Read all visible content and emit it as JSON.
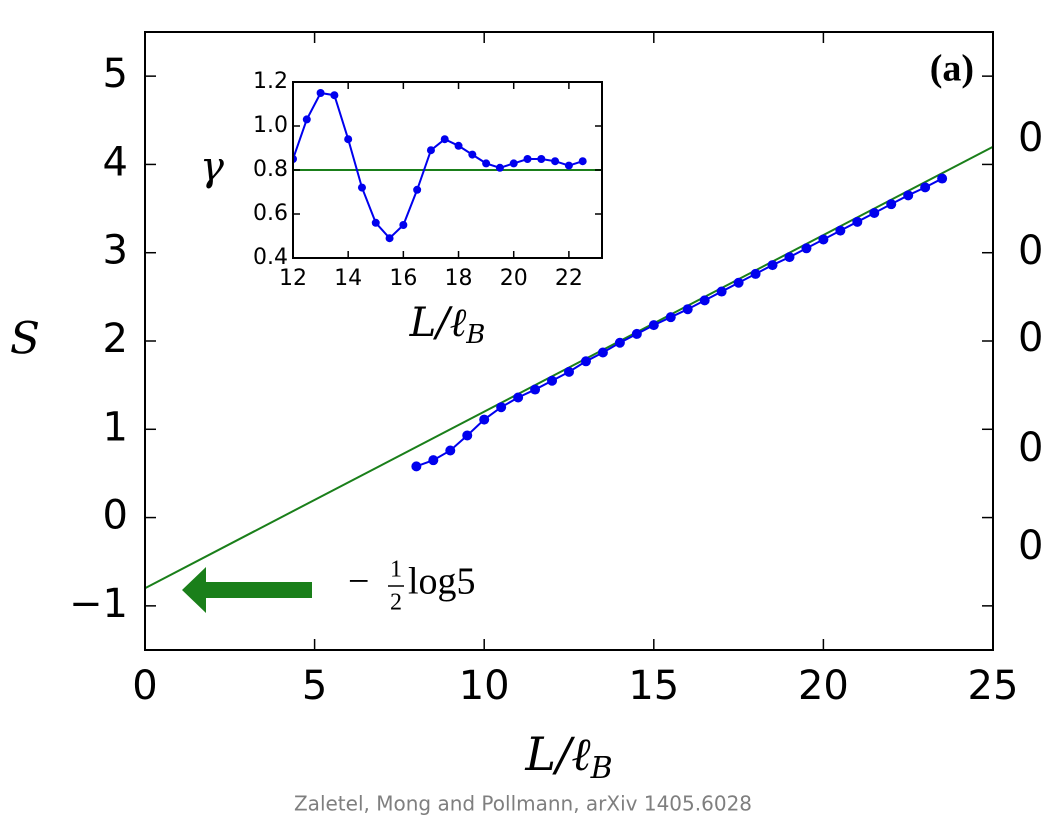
{
  "chart_data": [
    {
      "type": "line",
      "panel_label": "(a)",
      "y_label": "S",
      "x_label": {
        "main": "L/ℓ",
        "sub": "B"
      },
      "xlim": [
        0,
        25
      ],
      "xticks": [
        0,
        5,
        10,
        15,
        20,
        25
      ],
      "ylim": [
        -1.5,
        5.5
      ],
      "yticks": [
        {
          "value": -1,
          "label": "−1"
        },
        0,
        1,
        2,
        3,
        4,
        5
      ],
      "y2_labels": [
        "0",
        "0",
        "0",
        "0",
        "0"
      ],
      "x": [
        8,
        8.5,
        9,
        9.5,
        10,
        10.5,
        11,
        11.5,
        12,
        12.5,
        13,
        13.5,
        14,
        14.5,
        15,
        15.5,
        16,
        16.5,
        17,
        17.5,
        18,
        18.5,
        19,
        19.5,
        20,
        20.5,
        21,
        21.5,
        22,
        22.5,
        23,
        23.5
      ],
      "series": [
        {
          "color": "#0000ee",
          "values": [
            0.58,
            0.65,
            0.76,
            0.93,
            1.11,
            1.25,
            1.36,
            1.45,
            1.55,
            1.65,
            1.77,
            1.87,
            1.98,
            2.08,
            2.18,
            2.27,
            2.36,
            2.46,
            2.56,
            2.66,
            2.76,
            2.86,
            2.95,
            3.05,
            3.15,
            3.25,
            3.35,
            3.45,
            3.55,
            3.65,
            3.74,
            3.84
          ]
        }
      ],
      "reference_line": {
        "x": [
          0,
          25
        ],
        "y": [
          -0.8,
          4.2
        ],
        "color": "#1a7f1a"
      },
      "annotation": {
        "sign": "−",
        "numerator": "1",
        "denominator": "2",
        "text": "log5",
        "color": "#1a7f1a"
      }
    },
    {
      "type": "line",
      "y_label": "γ",
      "x_label": {
        "main": "L/ℓ",
        "sub": "B"
      },
      "xlim": [
        12,
        23.2
      ],
      "xticks": [
        12,
        14,
        16,
        18,
        20,
        22
      ],
      "ylim": [
        0.4,
        1.2
      ],
      "yticks": [
        0.4,
        0.6,
        0.8,
        {
          "value": 1.0,
          "label": "1.0"
        },
        1.2
      ],
      "x": [
        12,
        12.5,
        13,
        13.5,
        14,
        14.5,
        15,
        15.5,
        16,
        16.5,
        17,
        17.5,
        18,
        18.5,
        19,
        19.5,
        20,
        20.5,
        21,
        21.5,
        22,
        22.5
      ],
      "series": [
        {
          "color": "#0000ee",
          "values": [
            0.85,
            1.03,
            1.15,
            1.14,
            0.94,
            0.72,
            0.56,
            0.49,
            0.55,
            0.71,
            0.89,
            0.94,
            0.91,
            0.87,
            0.83,
            0.81,
            0.83,
            0.85,
            0.85,
            0.84,
            0.82,
            0.84
          ]
        }
      ],
      "reference_line": {
        "y": 0.8,
        "color": "#1a7f1a"
      }
    }
  ],
  "caption": "Zaletel, Mong and Pollmann, arXiv 1405.6028"
}
